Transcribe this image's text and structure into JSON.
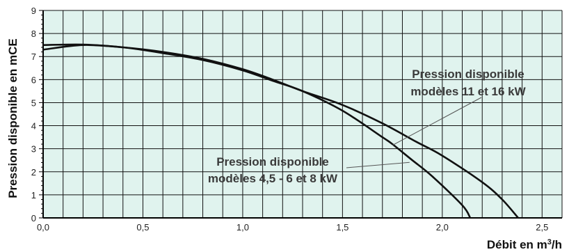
{
  "chart_data": {
    "type": "line",
    "xlabel_prefix": "Débit en m",
    "xlabel_sup": "3",
    "xlabel_suffix": "/h",
    "ylabel": "Pression disponible en mCE",
    "xlim": [
      0,
      2.6
    ],
    "ylim": [
      0,
      9
    ],
    "x_ticks": [
      "0,0",
      "0,5",
      "1,0",
      "1,5",
      "2,0",
      "2,5"
    ],
    "y_ticks": [
      "0",
      "1",
      "2",
      "3",
      "4",
      "5",
      "6",
      "7",
      "8",
      "9"
    ],
    "grid": true,
    "background_color": "#e0f3ee",
    "grid_color": "#111111",
    "line_color": "#111111",
    "series": [
      {
        "x": [
          0.0,
          0.2,
          0.4,
          0.6,
          0.8,
          1.0,
          1.15,
          1.3,
          1.5,
          1.7,
          1.75,
          1.85,
          1.95,
          2.1,
          2.14
        ],
        "y": [
          7.5,
          7.52,
          7.4,
          7.15,
          6.85,
          6.4,
          5.95,
          5.5,
          4.65,
          3.5,
          3.2,
          2.5,
          1.8,
          0.55,
          0.0
        ]
      },
      {
        "x": [
          0.0,
          0.2,
          0.4,
          0.6,
          0.8,
          1.0,
          1.15,
          1.3,
          1.5,
          1.7,
          1.87,
          2.0,
          2.2,
          2.3,
          2.38
        ],
        "y": [
          7.3,
          7.5,
          7.4,
          7.2,
          6.9,
          6.45,
          6.0,
          5.5,
          4.9,
          4.1,
          3.3,
          2.7,
          1.55,
          0.8,
          0.0
        ]
      }
    ],
    "annotations": [
      {
        "lines": [
          "Pression disponible",
          "modèles 11 et 16 kW"
        ],
        "pointer_to": [
          1.75,
          3.15
        ]
      },
      {
        "lines": [
          "Pression disponible",
          "modèles 4,5 - 6 et 8 kW"
        ],
        "pointer_to": [
          1.85,
          2.5
        ]
      }
    ]
  }
}
